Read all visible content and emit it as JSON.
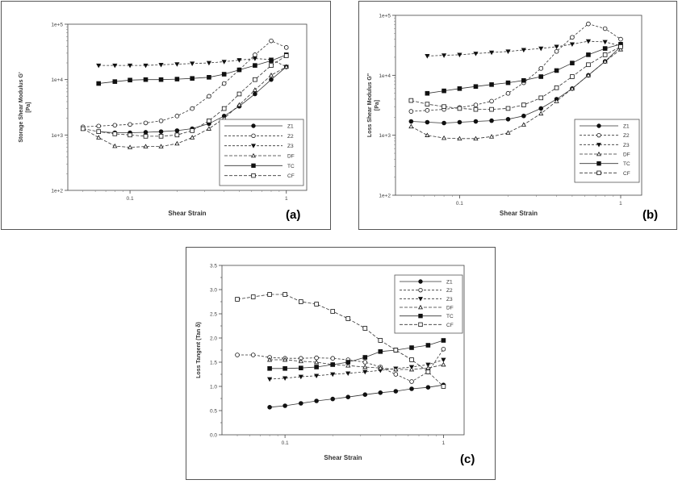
{
  "chart_data": [
    {
      "id": "a",
      "type": "line",
      "panel_label": "(a)",
      "xlabel": "Shear Strain",
      "ylabel": "Storage Shear Modulus G'",
      "ylabel_unit": "[Pa]",
      "xscale": "log",
      "yscale": "log",
      "xlim": [
        0.04,
        1.35
      ],
      "ylim": [
        100,
        100000
      ],
      "xticks": [
        {
          "v": 0.1,
          "label": "0.1"
        },
        {
          "v": 1,
          "label": "1"
        }
      ],
      "yticks": [
        {
          "v": 100,
          "label": "1e+2"
        },
        {
          "v": 1000,
          "label": "1e+3"
        },
        {
          "v": 10000,
          "label": "1e+4"
        },
        {
          "v": 100000,
          "label": "1e+5"
        }
      ],
      "legend_position": "bottom-right",
      "series": [
        {
          "name": "Z1",
          "marker": "filled-circle",
          "dash": "",
          "x": [
            0.063,
            0.08,
            0.1,
            0.126,
            0.158,
            0.2,
            0.25,
            0.32,
            0.4,
            0.5,
            0.63,
            0.8,
            1.0
          ],
          "y": [
            1150,
            1100,
            1100,
            1120,
            1150,
            1200,
            1300,
            1600,
            2200,
            3300,
            5500,
            10000,
            17000
          ]
        },
        {
          "name": "Z2",
          "marker": "open-circle",
          "dash": "3,2",
          "x": [
            0.05,
            0.063,
            0.08,
            0.1,
            0.126,
            0.158,
            0.2,
            0.25,
            0.32,
            0.4,
            0.5,
            0.63,
            0.8,
            1.0
          ],
          "y": [
            1400,
            1450,
            1500,
            1550,
            1650,
            1800,
            2200,
            3000,
            5000,
            8500,
            15000,
            28000,
            50000,
            38000
          ]
        },
        {
          "name": "Z3",
          "marker": "filled-triangle-down",
          "dash": "3,2",
          "x": [
            0.063,
            0.08,
            0.1,
            0.126,
            0.158,
            0.2,
            0.25,
            0.32,
            0.4,
            0.5,
            0.63,
            0.8,
            1.0
          ],
          "y": [
            18000,
            18000,
            18000,
            18000,
            18500,
            19000,
            19500,
            20000,
            21000,
            22500,
            24000,
            23000,
            17000
          ]
        },
        {
          "name": "DF",
          "marker": "open-triangle",
          "dash": "4,2",
          "x": [
            0.05,
            0.063,
            0.08,
            0.1,
            0.126,
            0.158,
            0.2,
            0.25,
            0.32,
            0.4,
            0.5,
            0.63,
            0.8,
            1.0
          ],
          "y": [
            1300,
            900,
            630,
            600,
            620,
            620,
            700,
            900,
            1300,
            2000,
            3500,
            6500,
            12000,
            17000
          ]
        },
        {
          "name": "TC",
          "marker": "filled-square",
          "dash": "",
          "x": [
            0.063,
            0.08,
            0.1,
            0.126,
            0.158,
            0.2,
            0.25,
            0.32,
            0.4,
            0.5,
            0.63,
            0.8,
            1.0
          ],
          "y": [
            8500,
            9200,
            9800,
            10000,
            10000,
            10200,
            10500,
            11000,
            12500,
            15000,
            18000,
            22000,
            28000
          ]
        },
        {
          "name": "CF",
          "marker": "open-square",
          "dash": "4,2",
          "x": [
            0.05,
            0.063,
            0.08,
            0.1,
            0.126,
            0.158,
            0.2,
            0.25,
            0.32,
            0.4,
            0.5,
            0.63,
            0.8,
            1.0
          ],
          "y": [
            1300,
            1150,
            1050,
            1000,
            950,
            950,
            1000,
            1200,
            1800,
            3000,
            5500,
            10000,
            18000,
            27000
          ]
        }
      ]
    },
    {
      "id": "b",
      "type": "line",
      "panel_label": "(b)",
      "xlabel": "Shear Strain",
      "ylabel": "Loss Shear Modulus G\"",
      "ylabel_unit": "[Pa]",
      "xscale": "log",
      "yscale": "log",
      "xlim": [
        0.04,
        1.35
      ],
      "ylim": [
        100,
        100000
      ],
      "xticks": [
        {
          "v": 0.1,
          "label": "0.1"
        },
        {
          "v": 1,
          "label": "1"
        }
      ],
      "yticks": [
        {
          "v": 100,
          "label": "1e+2"
        },
        {
          "v": 1000,
          "label": "1e+3"
        },
        {
          "v": 10000,
          "label": "1e+4"
        },
        {
          "v": 100000,
          "label": "1e+5"
        }
      ],
      "legend_position": "bottom-right",
      "series": [
        {
          "name": "Z1",
          "marker": "filled-circle",
          "dash": "",
          "x": [
            0.05,
            0.063,
            0.08,
            0.1,
            0.126,
            0.158,
            0.2,
            0.25,
            0.32,
            0.4,
            0.5,
            0.63,
            0.8,
            1.0
          ],
          "y": [
            1700,
            1650,
            1600,
            1650,
            1700,
            1750,
            1850,
            2100,
            2800,
            4000,
            6000,
            10000,
            17000,
            30000
          ]
        },
        {
          "name": "Z2",
          "marker": "open-circle",
          "dash": "3,2",
          "x": [
            0.05,
            0.063,
            0.08,
            0.1,
            0.126,
            0.158,
            0.2,
            0.25,
            0.32,
            0.4,
            0.5,
            0.63,
            0.8,
            1.0
          ],
          "y": [
            2500,
            2600,
            2700,
            2900,
            3200,
            3700,
            5000,
            7500,
            13000,
            25000,
            43000,
            72000,
            60000,
            40000
          ]
        },
        {
          "name": "Z3",
          "marker": "filled-triangle-down",
          "dash": "3,2",
          "x": [
            0.063,
            0.08,
            0.1,
            0.126,
            0.158,
            0.2,
            0.25,
            0.32,
            0.4,
            0.5,
            0.63,
            0.8,
            1.0
          ],
          "y": [
            21000,
            21500,
            22000,
            23000,
            24000,
            25000,
            26500,
            28000,
            30000,
            33000,
            37000,
            36000,
            31000
          ]
        },
        {
          "name": "DF",
          "marker": "open-triangle",
          "dash": "4,2",
          "x": [
            0.05,
            0.063,
            0.08,
            0.1,
            0.126,
            0.158,
            0.2,
            0.25,
            0.32,
            0.4,
            0.5,
            0.63,
            0.8,
            1.0
          ],
          "y": [
            1400,
            1000,
            900,
            880,
            880,
            950,
            1100,
            1500,
            2300,
            3700,
            6000,
            10000,
            17000,
            27000
          ]
        },
        {
          "name": "TC",
          "marker": "filled-square",
          "dash": "",
          "x": [
            0.063,
            0.08,
            0.1,
            0.126,
            0.158,
            0.2,
            0.25,
            0.32,
            0.4,
            0.5,
            0.63,
            0.8,
            1.0
          ],
          "y": [
            5000,
            5500,
            6000,
            6500,
            7000,
            7500,
            8200,
            9500,
            12000,
            16000,
            22000,
            28000,
            33000
          ]
        },
        {
          "name": "CF",
          "marker": "open-square",
          "dash": "4,2",
          "x": [
            0.05,
            0.063,
            0.08,
            0.1,
            0.126,
            0.158,
            0.2,
            0.25,
            0.32,
            0.4,
            0.5,
            0.63,
            0.8,
            1.0
          ],
          "y": [
            3800,
            3300,
            3000,
            2800,
            2700,
            2700,
            2800,
            3200,
            4200,
            6200,
            9500,
            15000,
            22000,
            30000
          ]
        }
      ]
    },
    {
      "id": "c",
      "type": "line",
      "panel_label": "(c)",
      "xlabel": "Shear Strain",
      "ylabel": "Loss Tangent  (Tan δ)",
      "xscale": "log",
      "yscale": "linear",
      "xlim": [
        0.04,
        1.35
      ],
      "ylim": [
        0,
        3.5
      ],
      "xticks": [
        {
          "v": 0.1,
          "label": "0.1"
        },
        {
          "v": 1,
          "label": "1"
        }
      ],
      "yticks": [
        {
          "v": 0,
          "label": "0.0"
        },
        {
          "v": 0.5,
          "label": "0.5"
        },
        {
          "v": 1,
          "label": "1.0"
        },
        {
          "v": 1.5,
          "label": "1.5"
        },
        {
          "v": 2,
          "label": "2.0"
        },
        {
          "v": 2.5,
          "label": "2.5"
        },
        {
          "v": 3,
          "label": "3.0"
        },
        {
          "v": 3.5,
          "label": "3.5"
        }
      ],
      "legend_position": "top-right",
      "series": [
        {
          "name": "Z1",
          "marker": "filled-circle",
          "dash": "",
          "x": [
            0.08,
            0.1,
            0.126,
            0.158,
            0.2,
            0.25,
            0.32,
            0.4,
            0.5,
            0.63,
            0.8,
            1.0
          ],
          "y": [
            0.57,
            0.6,
            0.65,
            0.7,
            0.74,
            0.78,
            0.83,
            0.87,
            0.9,
            0.95,
            0.98,
            1.03
          ]
        },
        {
          "name": "Z2",
          "marker": "open-circle",
          "dash": "3,2",
          "x": [
            0.05,
            0.063,
            0.08,
            0.1,
            0.126,
            0.158,
            0.2,
            0.25,
            0.32,
            0.4,
            0.5,
            0.63,
            0.8,
            1.0
          ],
          "y": [
            1.65,
            1.65,
            1.6,
            1.58,
            1.58,
            1.59,
            1.58,
            1.55,
            1.5,
            1.4,
            1.25,
            1.1,
            1.3,
            1.77
          ]
        },
        {
          "name": "Z3",
          "marker": "filled-triangle-down",
          "dash": "3,2",
          "x": [
            0.08,
            0.1,
            0.126,
            0.158,
            0.2,
            0.25,
            0.32,
            0.4,
            0.5,
            0.63,
            0.8,
            1.0
          ],
          "y": [
            1.15,
            1.17,
            1.2,
            1.22,
            1.25,
            1.27,
            1.3,
            1.33,
            1.37,
            1.4,
            1.45,
            1.55
          ]
        },
        {
          "name": "DF",
          "marker": "open-triangle",
          "dash": "4,2",
          "x": [
            0.08,
            0.1,
            0.126,
            0.158,
            0.2,
            0.25,
            0.32,
            0.4,
            0.5,
            0.63,
            0.8,
            1.0
          ],
          "y": [
            1.55,
            1.55,
            1.52,
            1.5,
            1.45,
            1.43,
            1.4,
            1.38,
            1.35,
            1.35,
            1.38,
            1.45
          ]
        },
        {
          "name": "TC",
          "marker": "filled-square",
          "dash": "",
          "x": [
            0.08,
            0.1,
            0.126,
            0.158,
            0.2,
            0.25,
            0.32,
            0.4,
            0.5,
            0.63,
            0.8,
            1.0
          ],
          "y": [
            1.37,
            1.37,
            1.38,
            1.4,
            1.45,
            1.5,
            1.6,
            1.72,
            1.75,
            1.8,
            1.85,
            1.95
          ]
        },
        {
          "name": "CF",
          "marker": "open-square",
          "dash": "4,2",
          "x": [
            0.05,
            0.063,
            0.08,
            0.1,
            0.126,
            0.158,
            0.2,
            0.25,
            0.32,
            0.4,
            0.5,
            0.63,
            0.8,
            1.0
          ],
          "y": [
            2.8,
            2.85,
            2.9,
            2.9,
            2.75,
            2.7,
            2.55,
            2.4,
            2.2,
            1.95,
            1.75,
            1.55,
            1.3,
            1.0
          ]
        }
      ]
    }
  ]
}
